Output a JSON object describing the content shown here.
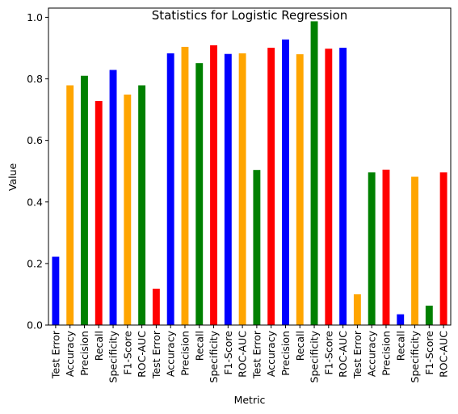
{
  "chart_data": {
    "type": "bar",
    "title": "Statistics for Logistic Regression",
    "xlabel": "Metric",
    "ylabel": "Value",
    "ylim": [
      0,
      1.03
    ],
    "yticks": [
      "0.0",
      "0.2",
      "0.4",
      "0.6",
      "0.8",
      "1.0"
    ],
    "grid": false,
    "legend": "none",
    "categories": [
      "Test Error",
      "Accuracy",
      "Precision",
      "Recall",
      "Specificity",
      "F1-Score",
      "ROC-AUC",
      "Test Error",
      "Accuracy",
      "Precision",
      "Recall",
      "Specificity",
      "F1-Score",
      "ROC-AUC",
      "Test Error",
      "Accuracy",
      "Precision",
      "Recall",
      "Specificity",
      "F1-Score",
      "ROC-AUC",
      "Test Error",
      "Accuracy",
      "Precision",
      "Recall",
      "Specificity",
      "F1-Score",
      "ROC-AUC"
    ],
    "values": [
      0.222,
      0.779,
      0.81,
      0.728,
      0.829,
      0.749,
      0.779,
      0.118,
      0.883,
      0.904,
      0.851,
      0.909,
      0.881,
      0.883,
      0.504,
      0.901,
      0.928,
      0.88,
      0.987,
      0.898,
      0.901,
      0.1,
      0.496,
      0.505,
      0.035,
      0.482,
      0.063,
      0.496
    ],
    "colors": [
      "#0000ff",
      "#ffa500",
      "#008000",
      "#ff0000",
      "#0000ff",
      "#ffa500",
      "#008000",
      "#ff0000",
      "#0000ff",
      "#ffa500",
      "#008000",
      "#ff0000",
      "#0000ff",
      "#ffa500",
      "#008000",
      "#ff0000",
      "#0000ff",
      "#ffa500",
      "#008000",
      "#ff0000",
      "#0000ff",
      "#ffa500",
      "#008000",
      "#ff0000",
      "#0000ff",
      "#ffa500",
      "#008000",
      "#ff0000"
    ]
  }
}
